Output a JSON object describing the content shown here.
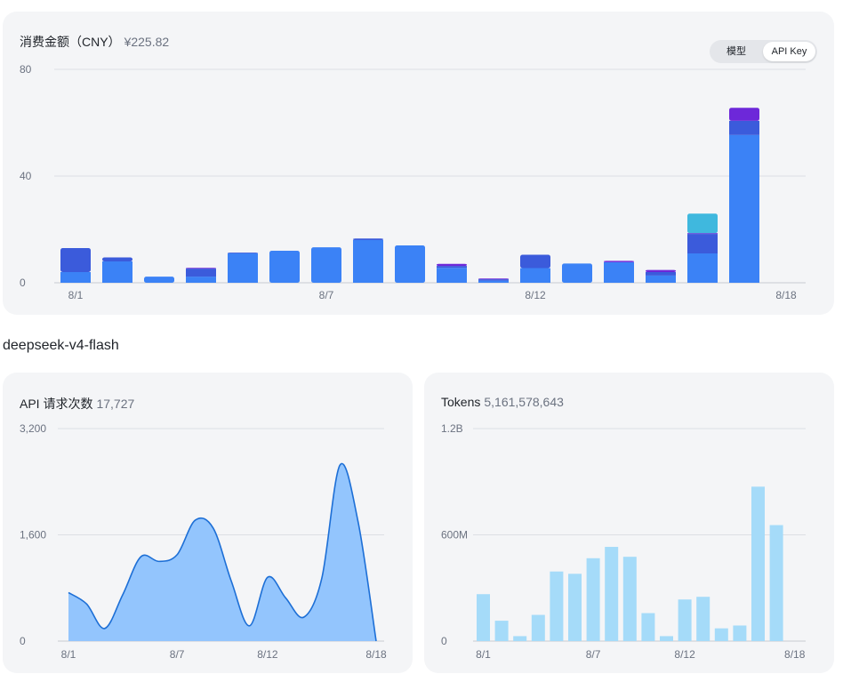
{
  "cost_card": {
    "title": "消费金额（CNY）",
    "total": "¥225.82",
    "toggle": {
      "options": [
        "模型",
        "API Key"
      ],
      "selected": "API Key"
    }
  },
  "section": {
    "title": "deepseek-v4-flash"
  },
  "requests_card": {
    "title": "API 请求次数",
    "total": "17,727"
  },
  "tokens_card": {
    "title": "Tokens",
    "total": "5,161,578,643"
  },
  "colors": {
    "blue": "#3b82f6",
    "indigo": "#3b5bdb",
    "purple": "#6d28d9",
    "cyan": "#3fb8de",
    "area_fill": "#93c5fd",
    "area_line": "#1d6fd6",
    "tokens_bar": "#a5dbf9"
  },
  "chart_data": [
    {
      "type": "bar",
      "stacked": true,
      "ylim": [
        0,
        80
      ],
      "yticks": [
        0,
        40,
        80
      ],
      "ytick_labels": [
        "0",
        "40",
        "80"
      ],
      "categories": [
        "8/1",
        "8/2",
        "8/3",
        "8/4",
        "8/5",
        "8/6",
        "8/7",
        "8/8",
        "8/9",
        "8/10",
        "8/11",
        "8/12",
        "8/13",
        "8/14",
        "8/15",
        "8/16",
        "8/17",
        "8/18"
      ],
      "xtick_labels": [
        {
          "index": 0,
          "label": "8/1"
        },
        {
          "index": 6,
          "label": "8/7"
        },
        {
          "index": 11,
          "label": "8/12"
        },
        {
          "index": 17,
          "label": "8/18"
        }
      ],
      "series": [
        {
          "values": [
            4,
            8,
            2.3,
            2.3,
            11,
            12,
            13.3,
            16,
            14,
            5.6,
            0.8,
            5.5,
            7.2,
            7.7,
            2.7,
            11,
            55.4,
            0
          ]
        },
        {
          "values": [
            9,
            1.5,
            0,
            3,
            0.3,
            0,
            0,
            0.6,
            0,
            0.7,
            0.5,
            5,
            0,
            0,
            1.3,
            7.3,
            5.3,
            0
          ]
        },
        {
          "values": [
            0,
            0,
            0,
            0.3,
            0,
            0,
            0,
            0,
            0,
            0.8,
            0.3,
            0,
            0,
            0.5,
            0.8,
            0.3,
            4.9,
            0
          ]
        },
        {
          "values": [
            0,
            0,
            0,
            0,
            0,
            0,
            0,
            0,
            0,
            0,
            0,
            0,
            0,
            0,
            0,
            7.3,
            0,
            0
          ]
        }
      ]
    },
    {
      "type": "area",
      "ylim": [
        0,
        3200
      ],
      "yticks": [
        0,
        1600,
        3200
      ],
      "ytick_labels": [
        "0",
        "1,600",
        "3,200"
      ],
      "x": [
        "8/1",
        "8/2",
        "8/3",
        "8/4",
        "8/5",
        "8/6",
        "8/7",
        "8/8",
        "8/9",
        "8/10",
        "8/11",
        "8/12",
        "8/13",
        "8/14",
        "8/15",
        "8/16",
        "8/17",
        "8/18"
      ],
      "xtick_labels": [
        {
          "index": 0,
          "label": "8/1"
        },
        {
          "index": 6,
          "label": "8/7"
        },
        {
          "index": 11,
          "label": "8/12"
        },
        {
          "index": 17,
          "label": "8/18"
        }
      ],
      "values": [
        730,
        560,
        190,
        700,
        1270,
        1200,
        1300,
        1820,
        1700,
        900,
        230,
        960,
        650,
        360,
        950,
        2650,
        1800,
        0
      ]
    },
    {
      "type": "bar",
      "ylim": [
        0,
        1200000000
      ],
      "yticks": [
        0,
        600000000,
        1200000000
      ],
      "ytick_labels": [
        "0",
        "600M",
        "1.2B"
      ],
      "categories": [
        "8/1",
        "8/2",
        "8/3",
        "8/4",
        "8/5",
        "8/6",
        "8/7",
        "8/8",
        "8/9",
        "8/10",
        "8/11",
        "8/12",
        "8/13",
        "8/14",
        "8/15",
        "8/16",
        "8/17",
        "8/18"
      ],
      "xtick_labels": [
        {
          "index": 0,
          "label": "8/1"
        },
        {
          "index": 6,
          "label": "8/7"
        },
        {
          "index": 11,
          "label": "8/12"
        },
        {
          "index": 17,
          "label": "8/18"
        }
      ],
      "values": [
        265000000,
        115000000,
        28000000,
        148000000,
        393000000,
        380000000,
        468000000,
        532000000,
        476000000,
        158000000,
        28000000,
        235000000,
        250000000,
        72000000,
        88000000,
        872000000,
        655000000,
        0
      ]
    }
  ]
}
